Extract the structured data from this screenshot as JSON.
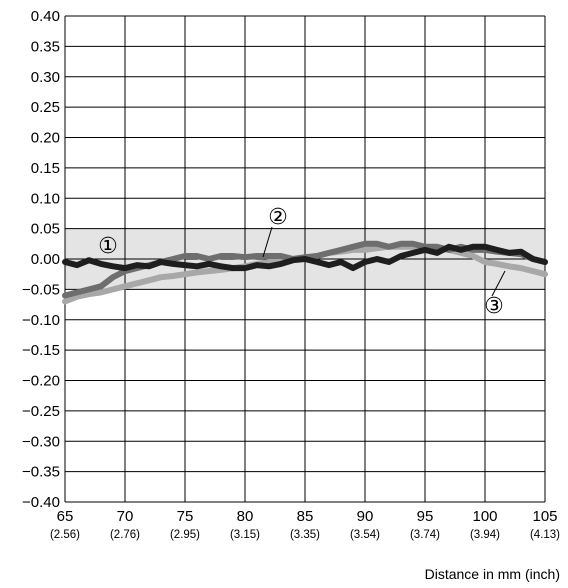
{
  "chart_data": {
    "type": "line",
    "title": "",
    "xlabel": "Distance in mm (inch)",
    "ylabel": "",
    "xlim": [
      65,
      105
    ],
    "ylim": [
      -0.4,
      0.4
    ],
    "grid": true,
    "x_ticks": [
      {
        "mm": "65",
        "inch": "(2.56)"
      },
      {
        "mm": "70",
        "inch": "(2.76)"
      },
      {
        "mm": "75",
        "inch": "(2.95)"
      },
      {
        "mm": "80",
        "inch": "(3.15)"
      },
      {
        "mm": "85",
        "inch": "(3.35)"
      },
      {
        "mm": "90",
        "inch": "(3.54)"
      },
      {
        "mm": "95",
        "inch": "(3.74)"
      },
      {
        "mm": "100",
        "inch": "(3.94)"
      },
      {
        "mm": "105",
        "inch": "(4.13)"
      }
    ],
    "y_ticks": [
      "0.40",
      "0.35",
      "0.30",
      "0.25",
      "0.20",
      "0.15",
      "0.10",
      "0.05",
      "0.00",
      "−0.05",
      "−0.10",
      "−0.15",
      "−0.20",
      "−0.25",
      "−0.30",
      "−0.35",
      "−0.40"
    ],
    "tolerance_band": {
      "ymin": -0.05,
      "ymax": 0.05,
      "color": "#e4e4e4"
    },
    "series": [
      {
        "marker": "①",
        "color": "#1e1e1e",
        "x": [
          65,
          66,
          67,
          68,
          69,
          70,
          71,
          72,
          73,
          74,
          75,
          76,
          77,
          78,
          79,
          80,
          81,
          82,
          83,
          84,
          85,
          86,
          87,
          88,
          89,
          90,
          91,
          92,
          93,
          94,
          95,
          96,
          97,
          98,
          99,
          100,
          101,
          102,
          103,
          104,
          105
        ],
        "y": [
          -0.005,
          -0.01,
          -0.002,
          -0.008,
          -0.012,
          -0.015,
          -0.01,
          -0.012,
          -0.005,
          -0.008,
          -0.01,
          -0.012,
          -0.008,
          -0.012,
          -0.015,
          -0.015,
          -0.01,
          -0.012,
          -0.008,
          -0.002,
          0.0,
          -0.005,
          -0.01,
          -0.005,
          -0.015,
          -0.005,
          0.0,
          -0.005,
          0.005,
          0.01,
          0.015,
          0.01,
          0.02,
          0.015,
          0.02,
          0.02,
          0.015,
          0.01,
          0.012,
          0.0,
          -0.005
        ]
      },
      {
        "marker": "②",
        "color": "#6e6e6e",
        "x": [
          65,
          66,
          67,
          68,
          69,
          70,
          71,
          72,
          73,
          74,
          75,
          76,
          77,
          78,
          79,
          80,
          81,
          82,
          83,
          84,
          85,
          86,
          87,
          88,
          89,
          90,
          91,
          92,
          93,
          94,
          95,
          96,
          97,
          98,
          99,
          100,
          101,
          102,
          103,
          104,
          105
        ],
        "y": [
          -0.06,
          -0.055,
          -0.05,
          -0.045,
          -0.03,
          -0.02,
          -0.015,
          -0.01,
          -0.005,
          0.0,
          0.005,
          0.005,
          0.0,
          0.005,
          0.005,
          0.003,
          0.005,
          0.005,
          0.005,
          0.0,
          0.003,
          0.005,
          0.01,
          0.015,
          0.02,
          0.025,
          0.025,
          0.02,
          0.025,
          0.025,
          0.02,
          0.02,
          0.015,
          0.02,
          0.015,
          0.015,
          0.012,
          0.01,
          0.008,
          0.0,
          -0.005
        ]
      },
      {
        "marker": "③",
        "color": "#a8a8a8",
        "x": [
          65,
          66,
          67,
          68,
          69,
          70,
          71,
          72,
          73,
          74,
          75,
          76,
          77,
          78,
          79,
          80,
          81,
          82,
          83,
          84,
          85,
          86,
          87,
          88,
          89,
          90,
          91,
          92,
          93,
          94,
          95,
          96,
          97,
          98,
          99,
          100,
          101,
          102,
          103,
          104,
          105
        ],
        "y": [
          -0.07,
          -0.062,
          -0.058,
          -0.055,
          -0.05,
          -0.045,
          -0.04,
          -0.035,
          -0.03,
          -0.028,
          -0.025,
          -0.022,
          -0.02,
          -0.018,
          -0.015,
          -0.012,
          -0.008,
          -0.005,
          -0.002,
          0.0,
          0.002,
          0.005,
          0.01,
          0.012,
          0.015,
          0.015,
          0.018,
          0.02,
          0.02,
          0.02,
          0.02,
          0.018,
          0.015,
          0.01,
          0.005,
          -0.005,
          -0.008,
          -0.012,
          -0.015,
          -0.02,
          -0.025
        ]
      }
    ]
  }
}
